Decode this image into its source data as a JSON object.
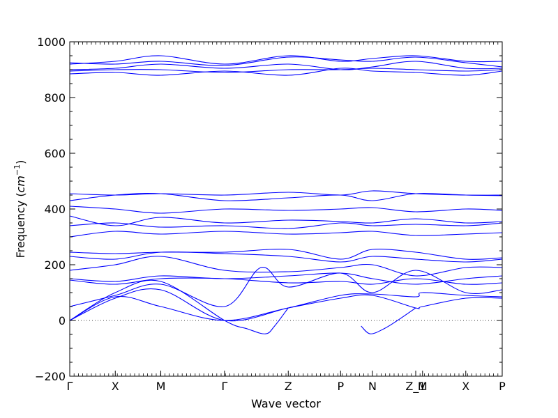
{
  "chart_data": {
    "type": "line",
    "title": "",
    "xlabel": "Wave vector",
    "ylabel_text": "Frequency (",
    "ylabel_math": "cm",
    "ylabel_exp": "−1",
    "ylabel_close": ")",
    "ylim": [
      -200,
      1000
    ],
    "yticks": [
      "−200",
      "0",
      "200",
      "400",
      "600",
      "800",
      "1000"
    ],
    "ytick_values": [
      -200,
      0,
      200,
      400,
      600,
      800,
      1000
    ],
    "xlim": [
      0,
      9.5
    ],
    "xticks": [
      {
        "label": "Γ",
        "x": 0
      },
      {
        "label": "X",
        "x": 1
      },
      {
        "label": "M",
        "x": 2
      },
      {
        "label": "Γ",
        "x": 3.4
      },
      {
        "label": "Z",
        "x": 4.8
      },
      {
        "label": "P",
        "x": 5.95
      },
      {
        "label": "N",
        "x": 6.65
      },
      {
        "label": "Z_1",
        "x": 7.6
      },
      {
        "label": "M",
        "x": 7.75
      },
      {
        "label": "X",
        "x": 8.7
      },
      {
        "label": "P",
        "x": 9.5
      }
    ],
    "zero_line": 0,
    "grid": false,
    "line_color": "#0000ff",
    "series": [
      {
        "x": [
          0,
          1,
          2,
          3.4,
          4.8,
          5.95,
          6.65,
          7.6,
          7.75,
          8.7,
          9.5
        ],
        "y": [
          0,
          85,
          50,
          0,
          45,
          80,
          90,
          45,
          50,
          80,
          80
        ]
      },
      {
        "x": [
          0,
          1,
          2,
          3.4,
          4.8,
          5.95,
          6.65,
          7.6,
          7.75,
          8.7,
          9.5
        ],
        "y": [
          0,
          80,
          110,
          0,
          45,
          90,
          95,
          85,
          100,
          90,
          85
        ]
      },
      {
        "x": [
          0,
          1,
          2,
          3.4,
          3.9,
          4.3,
          4.5,
          4.8
        ],
        "y": [
          0,
          100,
          140,
          0,
          -30,
          -48,
          -20,
          45
        ]
      },
      {
        "x": [
          6.4,
          6.6,
          6.9,
          7.2,
          7.6
        ],
        "y": [
          -20,
          -48,
          -30,
          0,
          45
        ]
      },
      {
        "x": [
          0,
          1,
          2,
          3.4,
          4.2,
          4.8,
          5.95,
          6.65,
          7.6,
          8.7,
          9.5
        ],
        "y": [
          50,
          90,
          130,
          50,
          190,
          120,
          170,
          100,
          180,
          100,
          110
        ]
      },
      {
        "x": [
          0,
          1,
          2,
          3.4,
          4.8,
          5.95,
          6.65,
          7.6,
          8.7,
          9.5
        ],
        "y": [
          145,
          130,
          150,
          150,
          135,
          140,
          130,
          150,
          130,
          135
        ]
      },
      {
        "x": [
          0,
          1,
          2,
          3.4,
          4.8,
          5.95,
          6.65,
          7.6,
          8.7,
          9.5
        ],
        "y": [
          150,
          140,
          160,
          150,
          160,
          170,
          150,
          130,
          150,
          160
        ]
      },
      {
        "x": [
          0,
          1,
          2,
          3.4,
          4.8,
          5.95,
          6.65,
          7.6,
          8.7,
          9.5
        ],
        "y": [
          180,
          200,
          230,
          180,
          175,
          190,
          200,
          160,
          190,
          190
        ]
      },
      {
        "x": [
          0,
          1,
          2,
          3.4,
          4.8,
          5.95,
          6.65,
          7.6,
          8.7,
          9.5
        ],
        "y": [
          230,
          220,
          245,
          240,
          230,
          210,
          230,
          220,
          210,
          220
        ]
      },
      {
        "x": [
          0,
          1,
          2,
          3.4,
          4.8,
          5.95,
          6.65,
          7.6,
          8.7,
          9.5
        ],
        "y": [
          245,
          240,
          245,
          245,
          255,
          220,
          255,
          245,
          220,
          225
        ]
      },
      {
        "x": [
          0,
          1,
          2,
          3.4,
          4.8,
          5.95,
          6.65,
          7.6,
          8.7,
          9.5
        ],
        "y": [
          300,
          320,
          310,
          320,
          310,
          315,
          320,
          305,
          310,
          315
        ]
      },
      {
        "x": [
          0,
          1,
          2,
          3.4,
          4.8,
          5.95,
          6.65,
          7.6,
          8.7,
          9.5
        ],
        "y": [
          340,
          350,
          335,
          340,
          330,
          350,
          340,
          345,
          340,
          350
        ]
      },
      {
        "x": [
          0,
          1,
          2,
          3.4,
          4.8,
          5.95,
          6.65,
          7.6,
          8.7,
          9.5
        ],
        "y": [
          375,
          340,
          370,
          350,
          360,
          355,
          350,
          365,
          350,
          355
        ]
      },
      {
        "x": [
          0,
          1,
          2,
          3.4,
          4.8,
          5.95,
          6.65,
          7.6,
          8.7,
          9.5
        ],
        "y": [
          410,
          400,
          385,
          400,
          395,
          400,
          405,
          390,
          400,
          395
        ]
      },
      {
        "x": [
          0,
          1,
          2,
          3.4,
          4.8,
          5.95,
          6.65,
          7.6,
          8.7,
          9.5
        ],
        "y": [
          430,
          450,
          455,
          430,
          440,
          450,
          430,
          455,
          450,
          448
        ]
      },
      {
        "x": [
          0,
          1,
          2,
          3.4,
          4.8,
          5.95,
          6.65,
          7.6,
          8.7,
          9.5
        ],
        "y": [
          455,
          450,
          455,
          450,
          460,
          450,
          465,
          455,
          450,
          450
        ]
      },
      {
        "x": [
          0,
          1,
          2,
          3.4,
          4.8,
          5.95,
          6.65,
          7.6,
          8.7,
          9.5
        ],
        "y": [
          885,
          890,
          880,
          895,
          880,
          905,
          895,
          890,
          880,
          895
        ]
      },
      {
        "x": [
          0,
          1,
          2,
          3.4,
          4.8,
          5.95,
          6.65,
          7.6,
          8.7,
          9.5
        ],
        "y": [
          895,
          900,
          900,
          890,
          900,
          900,
          905,
          900,
          895,
          900
        ]
      },
      {
        "x": [
          0,
          1,
          2,
          3.4,
          4.8,
          5.95,
          6.65,
          7.6,
          8.7,
          9.5
        ],
        "y": [
          900,
          905,
          920,
          905,
          920,
          900,
          910,
          930,
          905,
          905
        ]
      },
      {
        "x": [
          0,
          1,
          2,
          3.4,
          4.8,
          5.95,
          6.65,
          7.6,
          8.7,
          9.5
        ],
        "y": [
          920,
          930,
          950,
          920,
          950,
          930,
          940,
          950,
          930,
          930
        ]
      },
      {
        "x": [
          0,
          1,
          2,
          3.4,
          4.8,
          5.95,
          6.65,
          7.6,
          8.7,
          9.5
        ],
        "y": [
          925,
          920,
          930,
          915,
          945,
          935,
          930,
          945,
          925,
          910
        ]
      }
    ]
  }
}
